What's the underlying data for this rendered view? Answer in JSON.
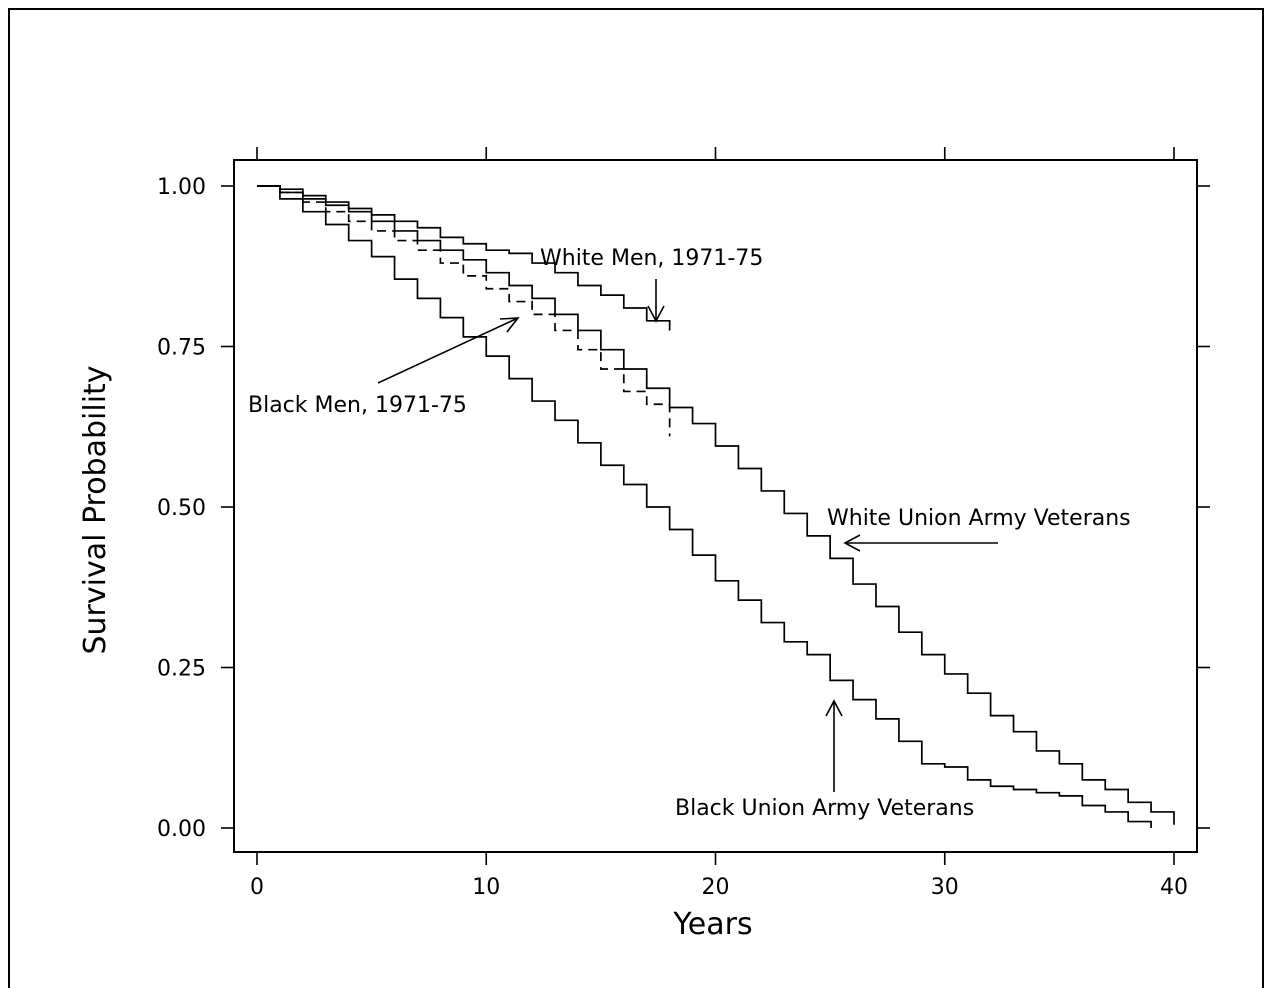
{
  "chart_data": {
    "type": "line",
    "step": true,
    "xlabel": "Years",
    "ylabel": "Survival Probability",
    "xlim": [
      0,
      40
    ],
    "ylim": [
      0,
      1
    ],
    "x_ticks": [
      "0",
      "10",
      "20",
      "30",
      "40"
    ],
    "y_ticks": [
      "0.00",
      "0.25",
      "0.50",
      "0.75",
      "1.00"
    ],
    "grid": false,
    "series": [
      {
        "name": "White Men, 1971-75",
        "dash": false,
        "x": [
          0,
          1,
          2,
          3,
          4,
          5,
          6,
          7,
          8,
          9,
          10,
          11,
          12,
          13,
          14,
          15,
          16,
          17,
          18
        ],
        "y": [
          1.0,
          0.995,
          0.985,
          0.975,
          0.965,
          0.955,
          0.945,
          0.935,
          0.92,
          0.91,
          0.9,
          0.895,
          0.88,
          0.865,
          0.845,
          0.83,
          0.81,
          0.79,
          0.775
        ]
      },
      {
        "name": "Black Men, 1971-75",
        "dash": true,
        "x": [
          0,
          1,
          2,
          3,
          4,
          5,
          6,
          7,
          8,
          9,
          10,
          11,
          12,
          13,
          14,
          15,
          16,
          17,
          18
        ],
        "y": [
          1.0,
          0.99,
          0.975,
          0.96,
          0.945,
          0.93,
          0.915,
          0.9,
          0.88,
          0.86,
          0.84,
          0.82,
          0.8,
          0.775,
          0.745,
          0.715,
          0.68,
          0.66,
          0.61
        ]
      },
      {
        "name": "White Union Army Veterans",
        "dash": false,
        "x": [
          0,
          1,
          2,
          3,
          4,
          5,
          6,
          7,
          8,
          9,
          10,
          11,
          12,
          13,
          14,
          15,
          16,
          17,
          18,
          19,
          20,
          21,
          22,
          23,
          24,
          25,
          26,
          27,
          28,
          29,
          30,
          31,
          32,
          33,
          34,
          35,
          36,
          37,
          38,
          39,
          40
        ],
        "y": [
          1.0,
          0.99,
          0.98,
          0.97,
          0.96,
          0.945,
          0.93,
          0.915,
          0.9,
          0.885,
          0.865,
          0.845,
          0.825,
          0.8,
          0.775,
          0.745,
          0.715,
          0.685,
          0.655,
          0.63,
          0.595,
          0.56,
          0.525,
          0.49,
          0.455,
          0.42,
          0.38,
          0.345,
          0.305,
          0.27,
          0.24,
          0.21,
          0.175,
          0.15,
          0.12,
          0.1,
          0.075,
          0.06,
          0.04,
          0.025,
          0.005
        ]
      },
      {
        "name": "Black Union Army Veterans",
        "dash": false,
        "x": [
          0,
          1,
          2,
          3,
          4,
          5,
          6,
          7,
          8,
          9,
          10,
          11,
          12,
          13,
          14,
          15,
          16,
          17,
          18,
          19,
          20,
          21,
          22,
          23,
          24,
          25,
          26,
          27,
          28,
          29,
          30,
          31,
          32,
          33,
          34,
          35,
          36,
          37,
          38,
          39
        ],
        "y": [
          1.0,
          0.98,
          0.96,
          0.94,
          0.915,
          0.89,
          0.855,
          0.825,
          0.795,
          0.765,
          0.735,
          0.7,
          0.665,
          0.635,
          0.6,
          0.565,
          0.535,
          0.5,
          0.465,
          0.425,
          0.385,
          0.355,
          0.32,
          0.29,
          0.27,
          0.23,
          0.2,
          0.17,
          0.135,
          0.1,
          0.095,
          0.075,
          0.065,
          0.06,
          0.055,
          0.05,
          0.035,
          0.025,
          0.01,
          0.0
        ]
      }
    ],
    "annotations": [
      "White Men, 1971-75",
      "Black Men, 1971-75",
      "White Union Army Veterans",
      "Black Union Army Veterans"
    ]
  }
}
